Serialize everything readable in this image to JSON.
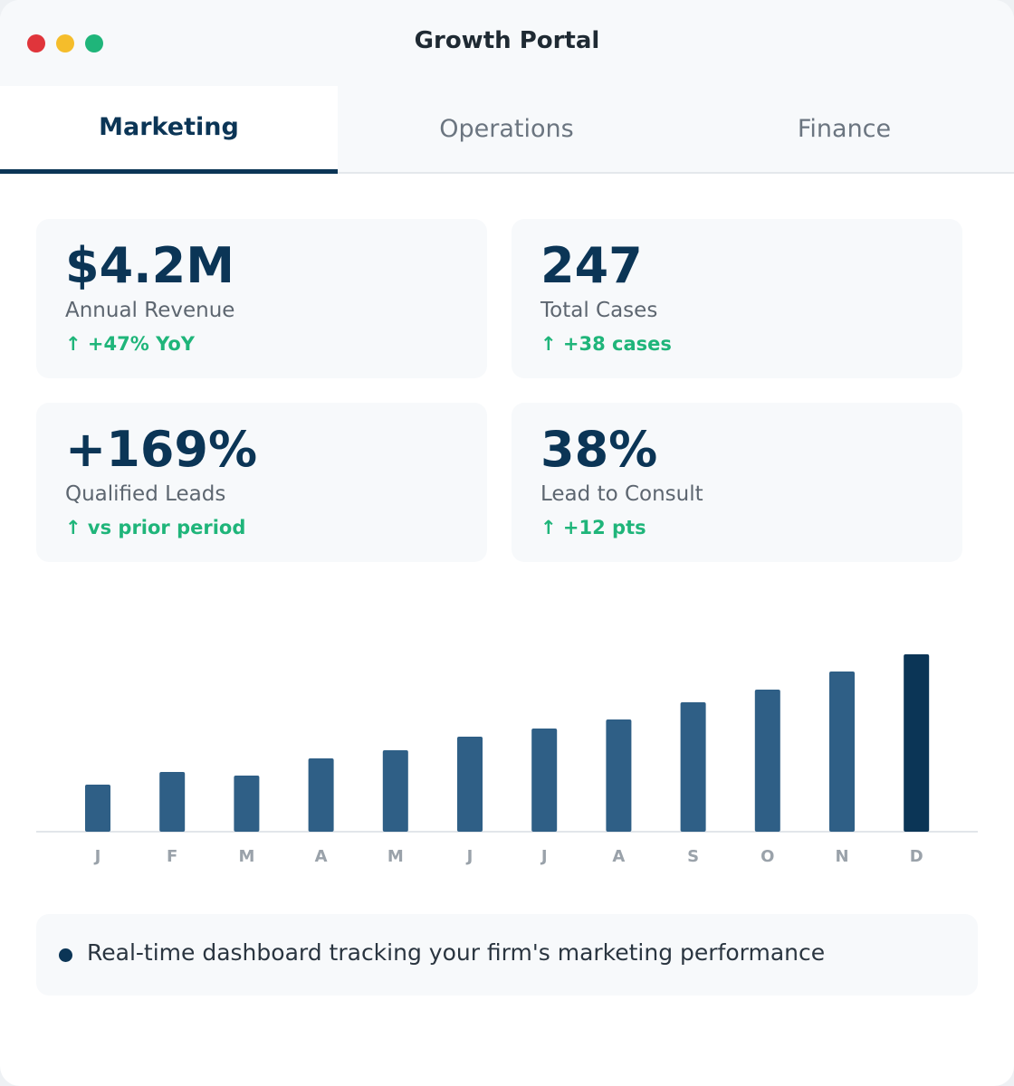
{
  "header": {
    "title": "Growth Portal"
  },
  "tabs": [
    "Marketing",
    "Operations",
    "Finance"
  ],
  "kpis": [
    {
      "value": "$4.2M",
      "label": "Annual Revenue",
      "delta": "↑ +47% YoY"
    },
    {
      "value": "247",
      "label": "Total Cases",
      "delta": "↑ +38 cases"
    },
    {
      "value": "+169%",
      "label": "Qualified Leads",
      "delta": "↑ vs prior period"
    },
    {
      "value": "38%",
      "label": "Lead to Consult",
      "delta": "↑ +12 pts"
    }
  ],
  "chart_data": {
    "type": "bar",
    "categories": [
      "J",
      "F",
      "M",
      "A",
      "M",
      "J",
      "J",
      "A",
      "S",
      "O",
      "N",
      "D"
    ],
    "values": [
      52,
      66,
      62,
      81,
      90,
      105,
      114,
      124,
      143,
      157,
      177,
      196
    ],
    "colors": [
      "#2f5f86",
      "#2f5f86",
      "#2f5f86",
      "#2f5f86",
      "#2f5f86",
      "#2f5f86",
      "#2f5f86",
      "#2f5f86",
      "#2f5f86",
      "#2f5f86",
      "#2f5f86",
      "#0b3556"
    ]
  },
  "footer": {
    "note": "Real-time dashboard tracking your firm's marketing performance"
  }
}
